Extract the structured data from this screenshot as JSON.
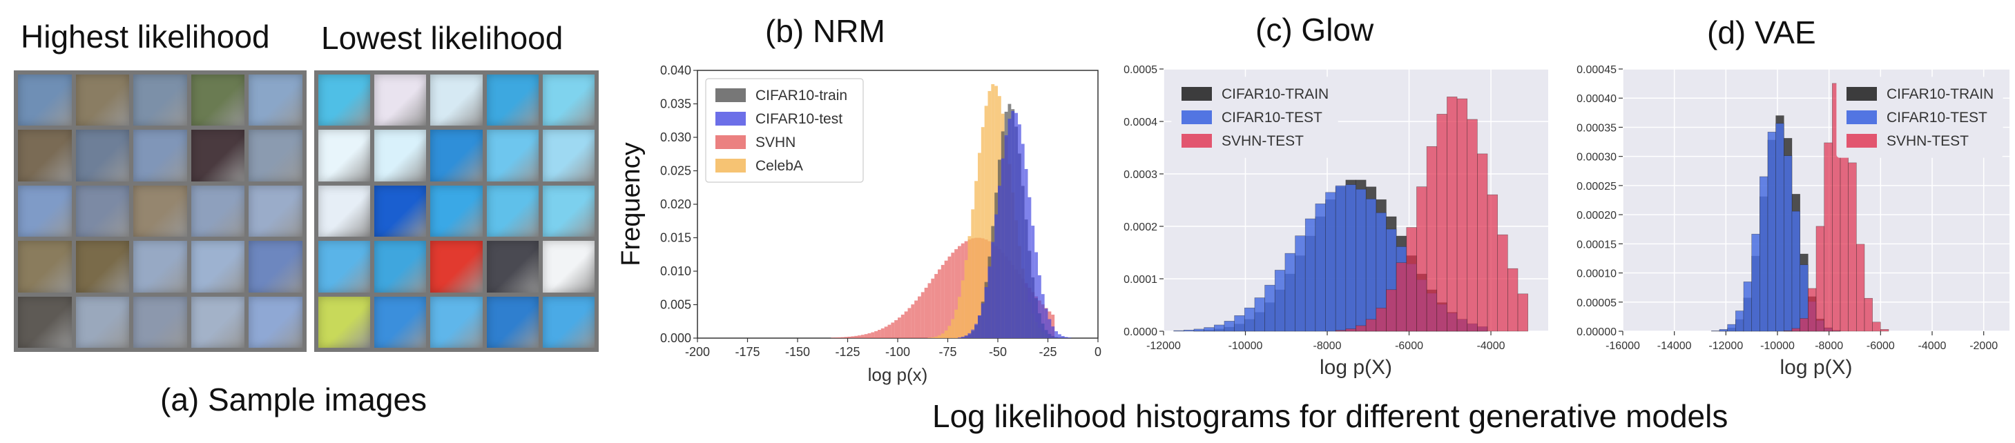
{
  "panel_a": {
    "highest_title": "Highest likelihood",
    "lowest_title": "Lowest likelihood",
    "caption": "(a) Sample images",
    "highest_colors": [
      "#6f8fb5",
      "#8a7d63",
      "#7c90a8",
      "#6a7b52",
      "#8aa6c8",
      "#7a6b55",
      "#6e7f98",
      "#8096b8",
      "#4a3a3f",
      "#8b9bb0",
      "#7f9bc7",
      "#7c8aa4",
      "#95866f",
      "#8ea0bd",
      "#9aacc9",
      "#8a7c5d",
      "#7a6b4a",
      "#97a9c4",
      "#9db2d0",
      "#6d87bf",
      "#5e5a55",
      "#9aa8bc",
      "#8c98ad",
      "#a3b2c8",
      "#8fa8d4"
    ],
    "lowest_colors": [
      "#4fbfe6",
      "#e9e3ef",
      "#d6e9f3",
      "#3da8e0",
      "#7fd3ee",
      "#e8f5fb",
      "#d9f1fb",
      "#2f8fd9",
      "#6ec6ee",
      "#9ed9f2",
      "#e6eef6",
      "#1a5fd0",
      "#3aa8e6",
      "#5fc0ea",
      "#7cd0ee",
      "#5ab4e8",
      "#3fa6de",
      "#e23a2f",
      "#4a4a52",
      "#f2f4f6",
      "#c8d95a",
      "#3b8fdc",
      "#5fb6ea",
      "#2f7fcf",
      "#4aaae6"
    ]
  },
  "panel_b": {
    "title": "(b)  NRM",
    "xlabel": "log p(x)",
    "ylabel": "Frequency"
  },
  "panel_c": {
    "title": "(c)  Glow",
    "xlabel": "log p(X)"
  },
  "panel_d": {
    "title": "(d)  VAE",
    "xlabel": "log p(X)"
  },
  "bottom_caption": "Log likelihood histograms for different generative models",
  "chart_data": [
    {
      "id": "nrm",
      "type": "histogram",
      "title": "(b)  NRM",
      "xlabel": "log p(x)",
      "ylabel": "Frequency",
      "xlim": [
        -200,
        0
      ],
      "ylim": [
        0,
        0.04
      ],
      "xticks": [
        -200,
        -175,
        -150,
        -125,
        -100,
        -75,
        -50,
        -25,
        0
      ],
      "yticks": [
        0.0,
        0.005,
        0.01,
        0.015,
        0.02,
        0.025,
        0.03,
        0.035,
        0.04
      ],
      "ytick_labels": [
        "0.000",
        "0.005",
        "0.010",
        "0.015",
        "0.020",
        "0.025",
        "0.030",
        "0.035",
        "0.040"
      ],
      "legend_position": "top-left",
      "series": [
        {
          "name": "SVHN",
          "color": "#e86a6a",
          "alpha": 0.75,
          "mean": -60,
          "sd": 22,
          "peak": 0.015,
          "start": -185,
          "end": -22
        },
        {
          "name": "CelebA",
          "color": "#f5b95a",
          "alpha": 0.75,
          "mean": -52,
          "sd": 9,
          "peak": 0.038,
          "start": -120,
          "end": -25
        },
        {
          "name": "CIFAR10-train",
          "color": "#555555",
          "alpha": 0.7,
          "mean": -44,
          "sd": 7,
          "peak": 0.035,
          "start": -110,
          "end": -15
        },
        {
          "name": "CIFAR10-test",
          "color": "#3b3fe0",
          "alpha": 0.65,
          "mean": -42,
          "sd": 8,
          "peak": 0.034,
          "start": -110,
          "end": -14
        }
      ],
      "legend_order": [
        "CIFAR10-train",
        "CIFAR10-test",
        "SVHN",
        "CelebA"
      ]
    },
    {
      "id": "glow",
      "type": "histogram",
      "title": "(c)  Glow",
      "xlabel": "log p(X)",
      "xlim": [
        -12000,
        -2600
      ],
      "ylim": [
        0,
        0.0005
      ],
      "xticks": [
        -12000,
        -10000,
        -8000,
        -6000,
        -4000
      ],
      "yticks": [
        0,
        0.0001,
        0.0002,
        0.0003,
        0.0004,
        0.0005
      ],
      "ytick_labels": [
        "0.0000",
        "0.0001",
        "0.0002",
        "0.0003",
        "0.0004",
        "0.0005"
      ],
      "legend_position": "top-left",
      "series": [
        {
          "name": "CIFAR10-TRAIN",
          "color": "#333333",
          "alpha": 0.85,
          "mean": -7300,
          "sd": 1150,
          "peak": 0.00029,
          "start": -11500,
          "end": -4200
        },
        {
          "name": "CIFAR10-TEST",
          "color": "#4a6fe0",
          "alpha": 0.85,
          "mean": -7500,
          "sd": 1250,
          "peak": 0.00028,
          "start": -11800,
          "end": -4200
        },
        {
          "name": "SVHN-TEST",
          "color": "#e0304f",
          "alpha": 0.7,
          "mean": -4850,
          "sd": 850,
          "peak": 0.00045,
          "start": -8500,
          "end": -3000
        }
      ]
    },
    {
      "id": "vae",
      "type": "histogram",
      "title": "(d)  VAE",
      "xlabel": "log p(X)",
      "xlim": [
        -16000,
        -1000
      ],
      "ylim": [
        0,
        0.00045
      ],
      "xticks": [
        -16000,
        -14000,
        -12000,
        -10000,
        -8000,
        -6000,
        -4000,
        -2000
      ],
      "yticks": [
        0,
        5e-05,
        0.0001,
        0.00015,
        0.0002,
        0.00025,
        0.0003,
        0.00035,
        0.0004,
        0.00045
      ],
      "ytick_labels": [
        "0.00000",
        "0.00005",
        "0.00010",
        "0.00015",
        "0.00020",
        "0.00025",
        "0.00030",
        "0.00035",
        "0.00040",
        "0.00045"
      ],
      "legend_position": "top-right",
      "series": [
        {
          "name": "CIFAR10-TRAIN",
          "color": "#333333",
          "alpha": 0.85,
          "mean": -9900,
          "sd": 650,
          "peak": 0.00037,
          "start": -14500,
          "end": -2000
        },
        {
          "name": "CIFAR10-TEST",
          "color": "#4a6fe0",
          "alpha": 0.85,
          "mean": -10000,
          "sd": 680,
          "peak": 0.00036,
          "start": -14500,
          "end": -2000
        },
        {
          "name": "SVHN-TEST",
          "color": "#e0304f",
          "alpha": 0.7,
          "mean": -7600,
          "sd": 560,
          "peak": 0.000435,
          "start": -11000,
          "end": -5500
        }
      ]
    }
  ]
}
